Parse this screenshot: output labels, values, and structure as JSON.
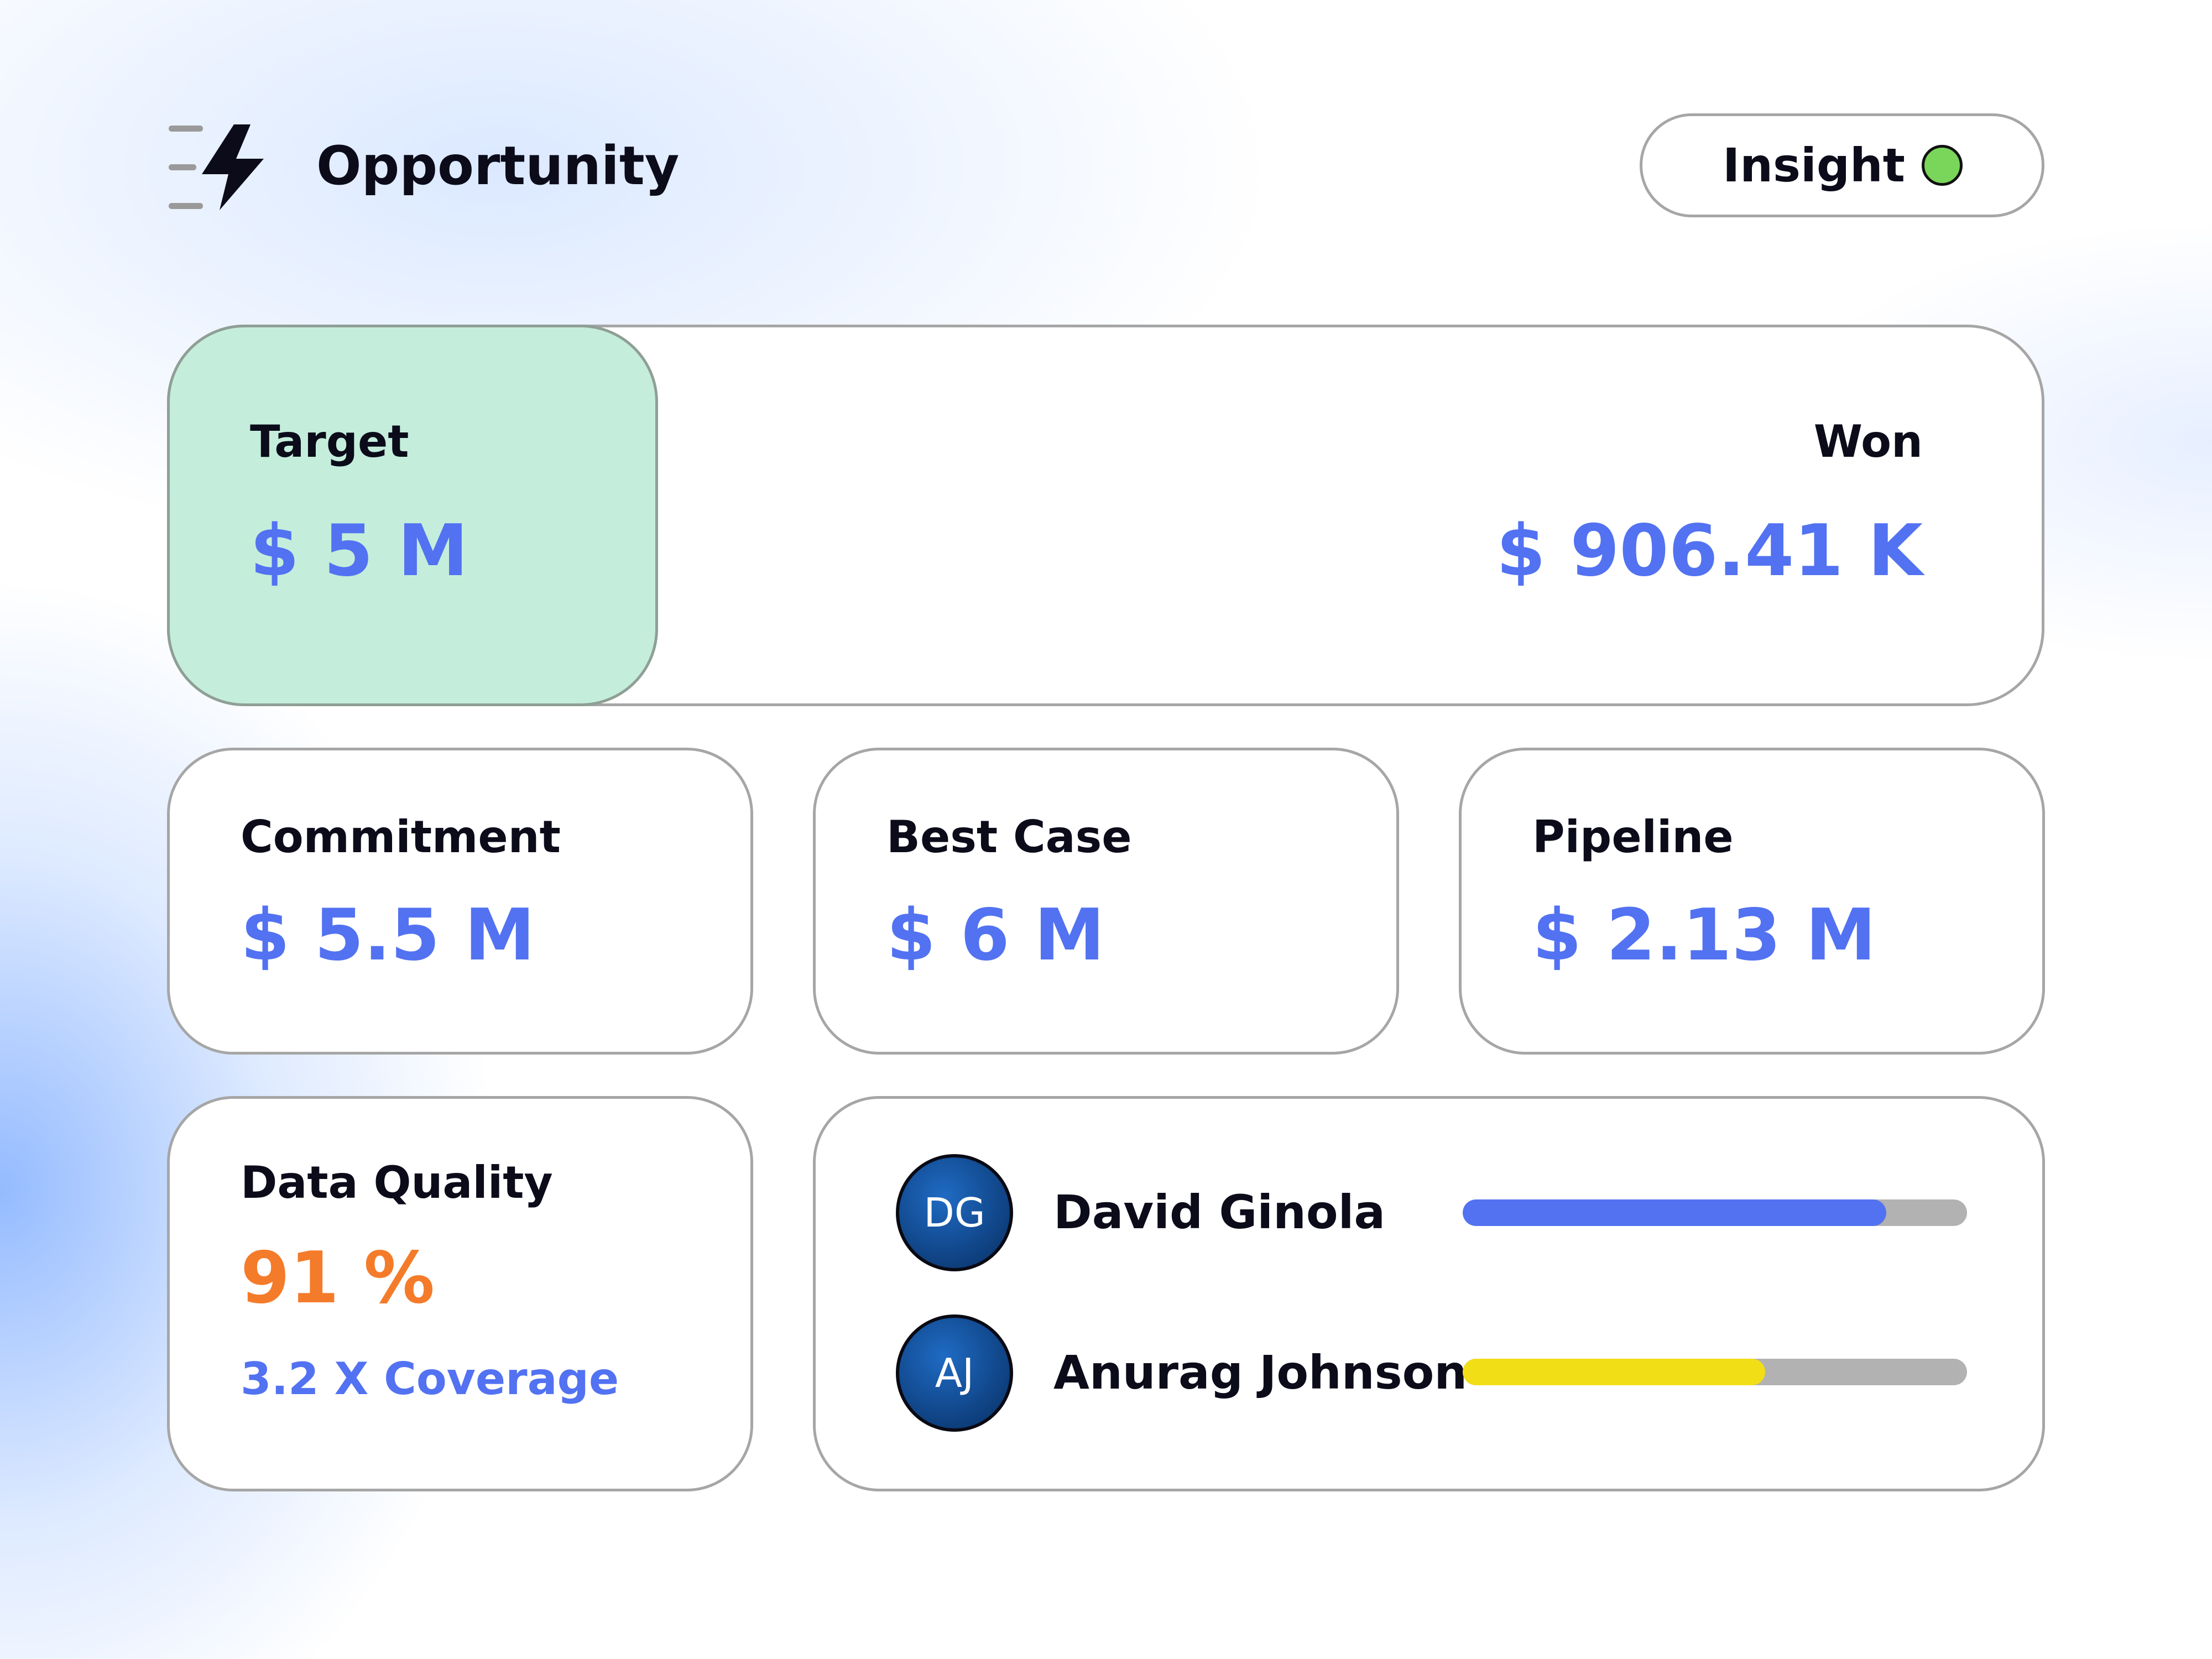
{
  "header": {
    "logo_icon": "lightning-bolt-icon",
    "title": "Opportunity",
    "insight_button": {
      "label": "Insight",
      "status_color": "#7ad65a"
    }
  },
  "summary": {
    "target": {
      "label": "Target",
      "value": "$ 5 M"
    },
    "won": {
      "label": "Won",
      "value": "$ 906.41 K"
    }
  },
  "kpis": {
    "commitment": {
      "label": "Commitment",
      "value": "$ 5.5 M"
    },
    "best_case": {
      "label": "Best Case",
      "value": "$ 6 M"
    },
    "pipeline": {
      "label": "Pipeline",
      "value": "$ 2.13 M"
    }
  },
  "data_quality": {
    "label": "Data Quality",
    "value": "91 %",
    "coverage": "3.2 X Coverage"
  },
  "people": [
    {
      "initials": "DG",
      "name": "David Ginola",
      "progress": 0.84,
      "bar_color": "#5272f2"
    },
    {
      "initials": "AJ",
      "name": "Anurag Johnson",
      "progress": 0.6,
      "bar_color": "#f2de17"
    }
  ],
  "colors": {
    "accent_blue": "#5272f2",
    "accent_orange": "#f47b2a",
    "target_green": "#c4eedb"
  }
}
